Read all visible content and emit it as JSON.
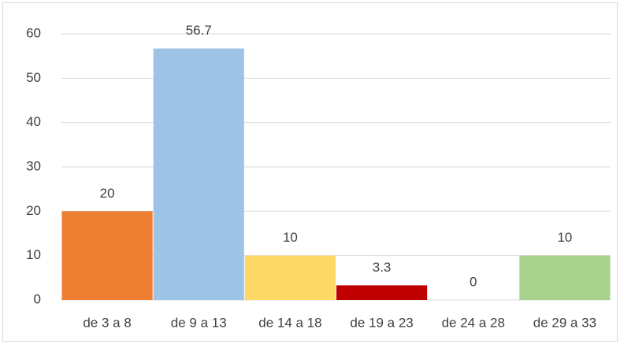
{
  "chart_data": {
    "type": "bar",
    "categories": [
      "de 3 a 8",
      "de 9 a 13",
      "de 14 a 18",
      "de 19 a 23",
      "de 24 a 28",
      "de 29 a 33"
    ],
    "values": [
      20,
      56.7,
      10,
      3.3,
      0,
      10
    ],
    "colors": [
      "#ed7d31",
      "#9dc3e6",
      "#ffd966",
      "#c00000",
      "#4472c4",
      "#a9d18e"
    ],
    "ylim": [
      0,
      60
    ],
    "yticks": [
      0,
      10,
      20,
      30,
      40,
      50,
      60
    ],
    "grid": true,
    "data_labels": true
  }
}
